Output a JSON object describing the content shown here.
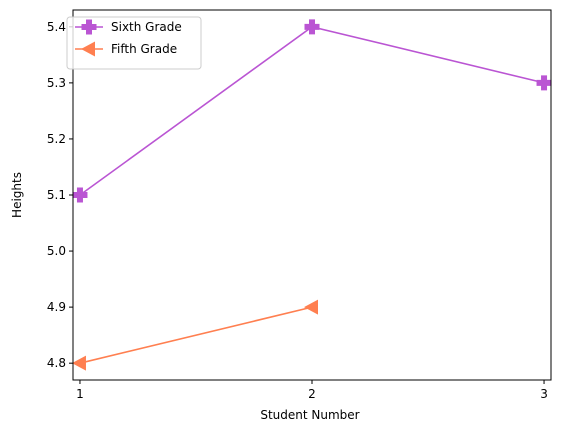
{
  "chart_data": {
    "type": "line",
    "xlabel": "Student Number",
    "ylabel": "Heights",
    "xlim": [
      0.97,
      3.03
    ],
    "ylim": [
      4.77,
      5.43
    ],
    "xticks": [
      1,
      2,
      3
    ],
    "yticks": [
      4.8,
      4.9,
      5.0,
      5.1,
      5.2,
      5.3,
      5.4
    ],
    "ytick_labels": [
      "4.8",
      "4.9",
      "5.0",
      "5.1",
      "5.2",
      "5.3",
      "5.4"
    ],
    "grid": false,
    "legend_position": "top-left",
    "series": [
      {
        "name": "Sixth Grade",
        "x": [
          1,
          2,
          3
        ],
        "y": [
          5.1,
          5.4,
          5.3
        ],
        "color": "#ba55d3",
        "marker": "plus-filled"
      },
      {
        "name": "Fifth Grade",
        "x": [
          1,
          2
        ],
        "y": [
          4.8,
          4.9
        ],
        "color": "#ff7f50",
        "marker": "triangle-left"
      }
    ]
  }
}
